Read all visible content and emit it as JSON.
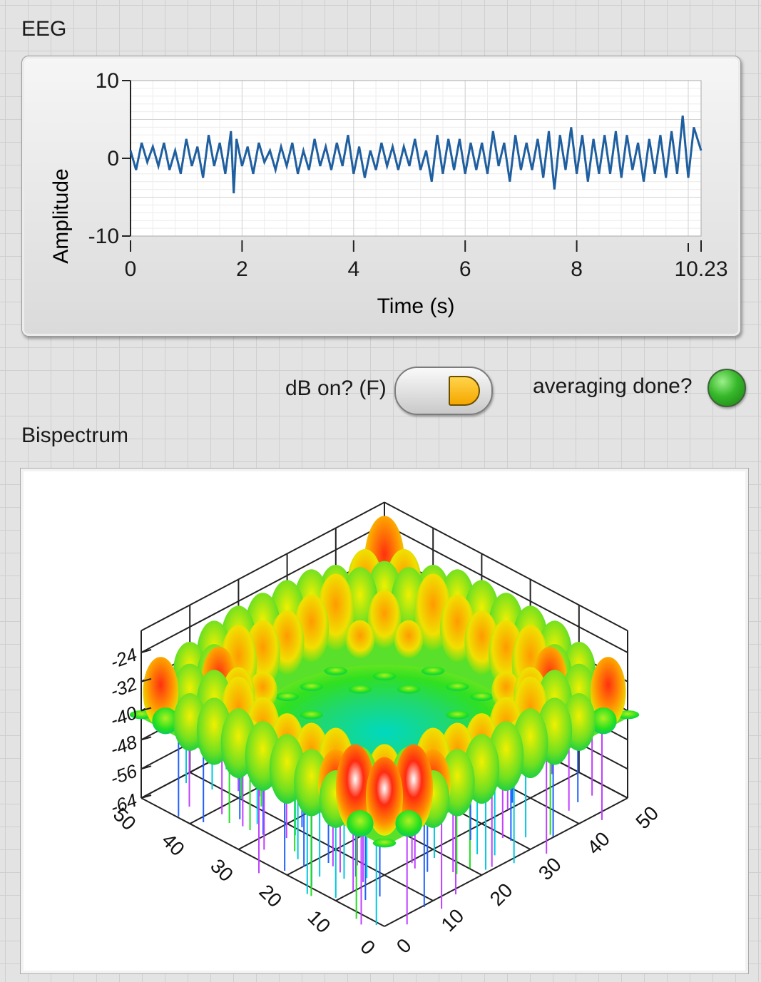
{
  "eeg": {
    "label": "EEG",
    "chart_data": {
      "type": "line",
      "xlabel": "Time (s)",
      "ylabel": "Amplitude",
      "xlim": [
        0,
        10.23
      ],
      "ylim": [
        -10,
        10
      ],
      "x_ticks": [
        "0",
        "2",
        "4",
        "6",
        "8",
        "10.23"
      ],
      "y_ticks": [
        "10",
        "0",
        "-10"
      ],
      "grid": true,
      "line_color": "#1f5fa0",
      "series": [
        {
          "x": [
            0,
            0.1,
            0.2,
            0.3,
            0.4,
            0.5,
            0.6,
            0.7,
            0.8,
            0.9,
            1.0,
            1.1,
            1.2,
            1.3,
            1.4,
            1.5,
            1.6,
            1.7,
            1.8,
            1.85,
            1.9,
            2.0,
            2.1,
            2.2,
            2.3,
            2.4,
            2.5,
            2.6,
            2.7,
            2.8,
            2.9,
            3.0,
            3.1,
            3.2,
            3.3,
            3.4,
            3.5,
            3.6,
            3.7,
            3.8,
            3.9,
            4.0,
            4.1,
            4.2,
            4.3,
            4.4,
            4.5,
            4.6,
            4.7,
            4.8,
            4.9,
            5.0,
            5.1,
            5.2,
            5.3,
            5.4,
            5.5,
            5.6,
            5.7,
            5.8,
            5.9,
            6.0,
            6.1,
            6.2,
            6.3,
            6.4,
            6.5,
            6.6,
            6.7,
            6.8,
            6.9,
            7.0,
            7.1,
            7.2,
            7.3,
            7.4,
            7.5,
            7.6,
            7.7,
            7.8,
            7.9,
            8.0,
            8.1,
            8.2,
            8.3,
            8.4,
            8.5,
            8.6,
            8.7,
            8.8,
            8.9,
            9.0,
            9.1,
            9.2,
            9.3,
            9.4,
            9.5,
            9.6,
            9.7,
            9.8,
            9.9,
            10.0,
            10.1,
            10.23
          ],
          "y": [
            1,
            -1.5,
            2,
            -0.5,
            1.5,
            -1,
            2,
            -1.5,
            1,
            -2,
            2.5,
            -1,
            1.5,
            -2.5,
            3,
            -1,
            2,
            -2,
            3.5,
            -4.5,
            2.5,
            -1,
            1.5,
            -2,
            2,
            -0.5,
            1,
            -1.5,
            1.5,
            -1,
            2,
            -2,
            1,
            -1.5,
            2.5,
            -1,
            1.5,
            -1.5,
            2,
            -1,
            3,
            -2,
            1.5,
            -2.5,
            1,
            -1.5,
            2,
            -1,
            1.5,
            -1.5,
            1.5,
            -1,
            2.5,
            -1.5,
            1,
            -3,
            3,
            -2,
            2.5,
            -1.5,
            2.5,
            -2,
            2,
            -1.5,
            2,
            -2,
            3.5,
            -1,
            2,
            -3,
            3,
            -1.5,
            2,
            -1.5,
            2.5,
            -2.5,
            3.5,
            -4,
            3,
            -1.5,
            4,
            -2,
            3,
            -3,
            2.5,
            -2,
            3,
            -2,
            3.5,
            -2.5,
            3,
            -1.5,
            2,
            -3,
            2.5,
            -2,
            3,
            -2.5,
            3.5,
            -2,
            5.5,
            -2.5,
            4,
            1
          ]
        }
      ]
    }
  },
  "db_toggle": {
    "label": "dB on? (F)",
    "state": "off"
  },
  "averaging": {
    "label": "averaging done?",
    "led_color": "#3cbf2a",
    "state": "on"
  },
  "bispectrum": {
    "label": "Bispectrum",
    "chart_data": {
      "type": "surface",
      "z_ticks": [
        "-24",
        "-32",
        "-40",
        "-48",
        "-56",
        "-64"
      ],
      "x_ticks": [
        "0",
        "10",
        "20",
        "30",
        "40",
        "50"
      ],
      "y_ticks": [
        "0",
        "10",
        "20",
        "30",
        "40",
        "50"
      ],
      "zlim": [
        -64,
        -24
      ],
      "xlim": [
        0,
        50
      ],
      "ylim": [
        0,
        50
      ],
      "colormap": [
        "#c040ff",
        "#2060ff",
        "#00e0e0",
        "#20e020",
        "#e0f000",
        "#ff9000",
        "#ff2000",
        "#ffffff"
      ]
    }
  }
}
